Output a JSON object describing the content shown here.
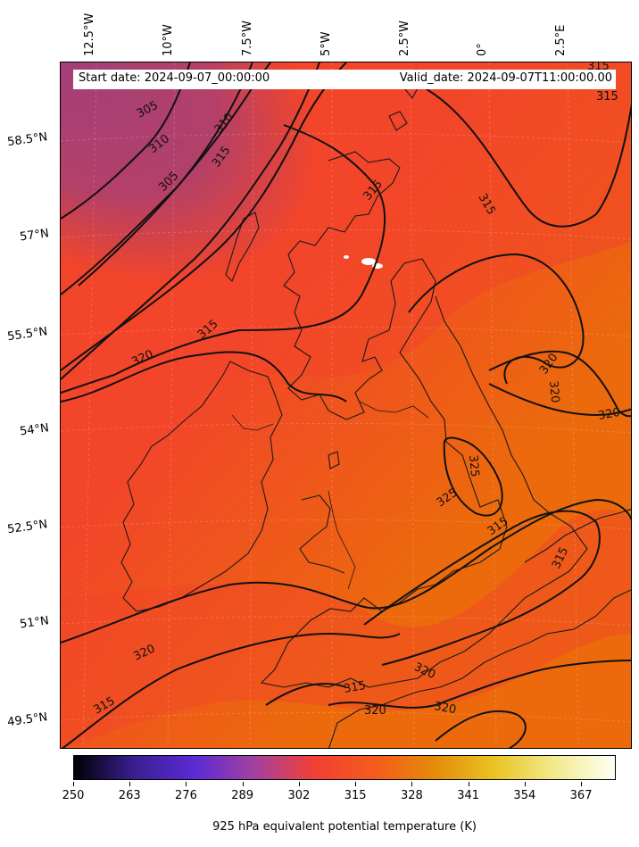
{
  "header": {
    "start_date": "Start date: 2024-09-07_00:00:00",
    "valid_date": "Valid_date: 2024-09-07T11:00:00.00"
  },
  "longitude_labels": [
    "12.5°W",
    "10°W",
    "7.5°W",
    "5°W",
    "2.5°W",
    "0°",
    "2.5°E"
  ],
  "latitude_labels": [
    "58.5°N",
    "57°N",
    "55.5°N",
    "54°N",
    "52.5°N",
    "51°N",
    "49.5°N"
  ],
  "contour_labels": [
    "305",
    "310",
    "305",
    "310",
    "315",
    "315",
    "315",
    "315",
    "320",
    "320",
    "320",
    "320",
    "325",
    "325",
    "315",
    "315",
    "320",
    "315",
    "320",
    "320",
    "315",
    "320",
    "315",
    "315"
  ],
  "colorbar": {
    "title": "925 hPa equivalent potential temperature (K)",
    "ticks": [
      "250",
      "263",
      "276",
      "289",
      "302",
      "315",
      "328",
      "341",
      "354",
      "367"
    ],
    "range": [
      250,
      375
    ],
    "colormap": [
      "#000004",
      "#3a1f8f",
      "#5a2bd6",
      "#a340a0",
      "#f24035",
      "#f45b1c",
      "#e58b0a",
      "#e9c423",
      "#f2ea8e",
      "#fffff5"
    ]
  },
  "colors": {
    "field_warm": "#ec6a0c",
    "field_mid": "#f2452a",
    "field_cool": "#a33f78",
    "contour": "#111111"
  }
}
